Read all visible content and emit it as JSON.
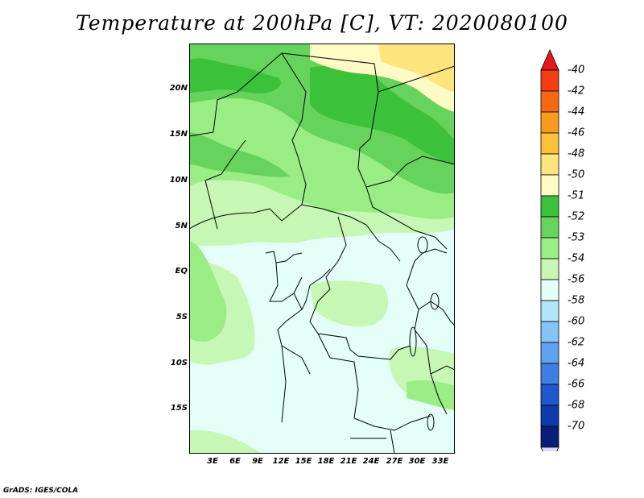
{
  "title": "Temperature at 200hPa [C], VT: 2020080100",
  "credit": "GrADS: IGES/COLA",
  "y_axis_labels": [
    "20N",
    "15N",
    "10N",
    "5N",
    "EQ",
    "5S",
    "10S",
    "15S"
  ],
  "x_axis_labels": [
    "3E",
    "6E",
    "9E",
    "12E",
    "15E",
    "18E",
    "21E",
    "24E",
    "27E",
    "30E",
    "33E"
  ],
  "colorbar": {
    "labels": [
      "-40",
      "-42",
      "-44",
      "-46",
      "-48",
      "-50",
      "-51",
      "-52",
      "-53",
      "-54",
      "-56",
      "-58",
      "-60",
      "-62",
      "-64",
      "-66",
      "-68",
      "-70"
    ],
    "colors": [
      "#e8151a",
      "#f53d12",
      "#f86812",
      "#fb9b1e",
      "#fcc137",
      "#fde47c",
      "#fffbc4",
      "#3cc23a",
      "#66d35c",
      "#9aed85",
      "#c7f7b5",
      "#e3fff8",
      "#b4e4fc",
      "#86c3f8",
      "#5fa2ee",
      "#3d7ee4",
      "#1f58ce",
      "#0f3aaa",
      "#091e78",
      "#d7d7ff"
    ]
  },
  "map_colors": {
    "c50": "#fffbc4",
    "c48": "#fde47c",
    "c51": "#3cc23a",
    "c52": "#66d35c",
    "c53": "#9aed85",
    "c54": "#c7f7b5",
    "c56": "#e3fff8",
    "border": "#000000"
  }
}
